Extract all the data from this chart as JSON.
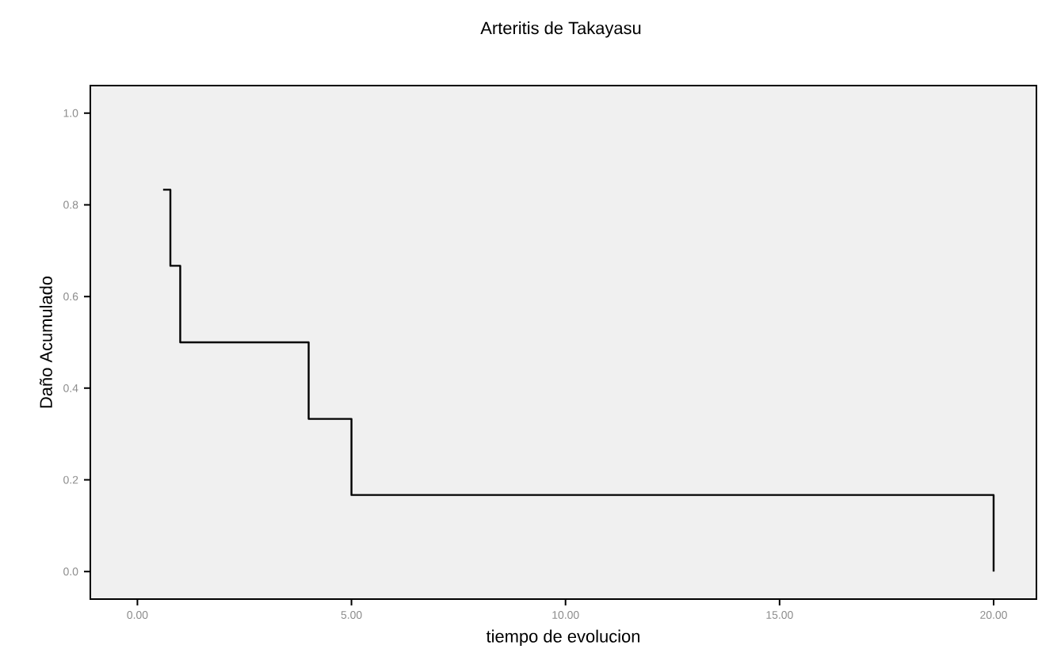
{
  "chart_data": {
    "type": "step",
    "title": "Arteritis de Takayasu",
    "xlabel": "tiempo de evolucion",
    "ylabel": "Daño Acumulado",
    "x": [
      0.6,
      0.77,
      1.0,
      4.0,
      5.0,
      20.0
    ],
    "series": [
      {
        "color": "#000000",
        "values": [
          0.833,
          0.667,
          0.5,
          0.333,
          0.167,
          0.0
        ]
      }
    ],
    "xlim": [
      -1.1,
      21.0
    ],
    "ylim": [
      -0.06,
      1.06
    ],
    "xticks": [
      {
        "value": 0,
        "label": "0.00"
      },
      {
        "value": 5,
        "label": "5.00"
      },
      {
        "value": 10,
        "label": "10.00"
      },
      {
        "value": 15,
        "label": "15.00"
      },
      {
        "value": 20,
        "label": "20.00"
      }
    ],
    "yticks": [
      {
        "value": 0,
        "label": "0.0"
      },
      {
        "value": 0.2,
        "label": "0.2"
      },
      {
        "value": 0.4,
        "label": "0.4"
      },
      {
        "value": 0.6,
        "label": "0.6"
      },
      {
        "value": 0.8,
        "label": "0.8"
      },
      {
        "value": 1.0,
        "label": "1.0"
      }
    ],
    "marker": "none",
    "line_style": "solid"
  }
}
